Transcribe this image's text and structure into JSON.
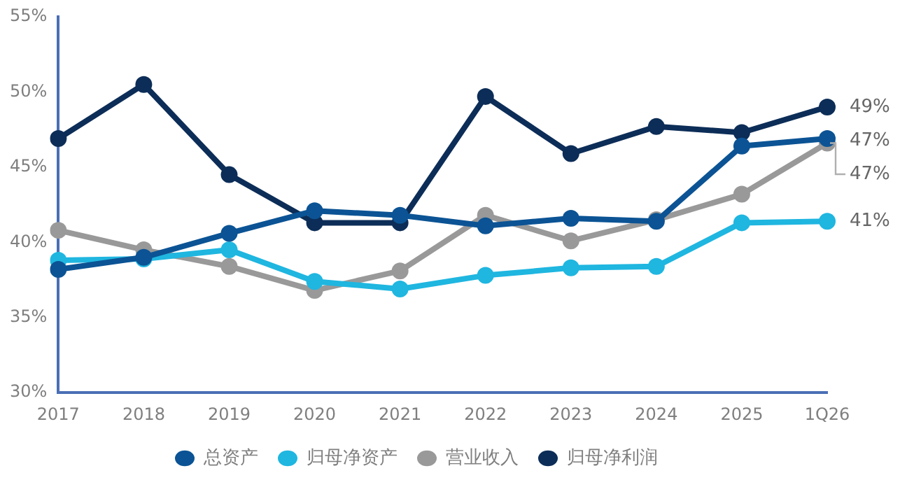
{
  "chart_data": {
    "type": "line",
    "categories": [
      "2017",
      "2018",
      "2019",
      "2020",
      "2021",
      "2022",
      "2023",
      "2024",
      "2025",
      "1Q26"
    ],
    "series": [
      {
        "name": "总资产",
        "color": "#0b5394",
        "values": [
          38.2,
          39.0,
          40.6,
          42.1,
          41.8,
          41.1,
          41.6,
          41.4,
          46.4,
          46.9
        ]
      },
      {
        "name": "归母净资产",
        "color": "#1fb6e0",
        "values": [
          38.8,
          38.9,
          39.5,
          37.4,
          36.9,
          37.8,
          38.3,
          38.4,
          41.3,
          41.4
        ]
      },
      {
        "name": "营业收入",
        "color": "#999999",
        "values": [
          40.8,
          39.5,
          38.4,
          36.8,
          38.1,
          41.8,
          40.1,
          41.5,
          43.2,
          46.6
        ]
      },
      {
        "name": "归母净利润",
        "color": "#0c2d57",
        "values": [
          46.9,
          50.5,
          44.5,
          41.3,
          41.3,
          49.7,
          45.9,
          47.7,
          47.3,
          49.0
        ]
      }
    ],
    "ylim": [
      30,
      55
    ],
    "yticks": [
      {
        "value": 30,
        "label": "30%"
      },
      {
        "value": 35,
        "label": "35%"
      },
      {
        "value": 40,
        "label": "40%"
      },
      {
        "value": 45,
        "label": "45%"
      },
      {
        "value": 50,
        "label": "50%"
      },
      {
        "value": 55,
        "label": "55%"
      }
    ],
    "annotations": [
      {
        "text": "49%",
        "x": "1Q26",
        "y": 49.0
      },
      {
        "text": "47%",
        "x": "1Q26",
        "y": 46.9
      },
      {
        "text": "47%",
        "x": "1Q26",
        "y": 46.6
      },
      {
        "text": "41%",
        "x": "1Q26",
        "y": 41.4
      }
    ],
    "grid": false,
    "legend": "bottom",
    "marker": "circle",
    "line_style": "solid"
  }
}
